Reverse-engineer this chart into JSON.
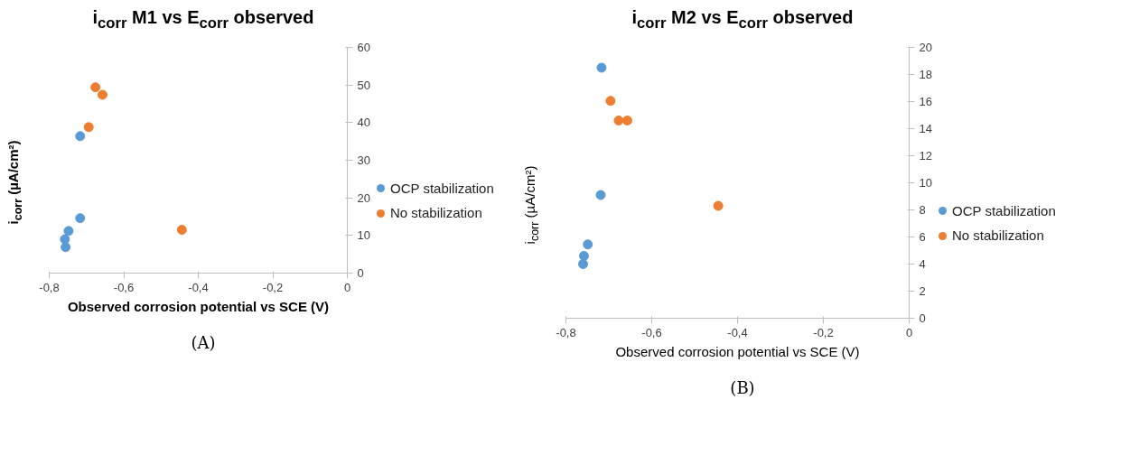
{
  "chart_data": [
    {
      "type": "scatter",
      "title": "i$_{corr}$ M1 vs E$_{corr}$ observed",
      "xlabel": "Observed corrosion potential vs SCE (V)",
      "ylabel": "i$_{corr}$ (µA/cm²)",
      "annotations": [
        "(A)"
      ],
      "xlim": [
        -0.8,
        0
      ],
      "xticks": [
        {
          "value": -0.8,
          "label": "-0,8"
        },
        {
          "value": -0.6,
          "label": "-0,6"
        },
        {
          "value": -0.4,
          "label": "-0,4"
        },
        {
          "value": -0.2,
          "label": "-0,2"
        },
        0
      ],
      "ylim": [
        0,
        60
      ],
      "yticks": [
        0,
        10,
        20,
        30,
        40,
        50,
        60
      ],
      "grid": false,
      "legend": "right",
      "marker": "circle",
      "series": [
        {
          "name": "OCP stabilization",
          "color": "#5b9bd5",
          "x": [
            -0.717,
            -0.717,
            -0.748,
            -0.758,
            -0.756
          ],
          "values": [
            36.4,
            14.6,
            11.2,
            9.0,
            6.9
          ]
        },
        {
          "name": "No stabilization",
          "color": "#ed7d31",
          "x": [
            -0.676,
            -0.657,
            -0.694,
            -0.444
          ],
          "values": [
            49.4,
            47.4,
            38.8,
            11.5
          ]
        }
      ]
    },
    {
      "type": "scatter",
      "title": "i$_{corr}$ M2 vs E$_{corr}$ observed",
      "xlabel": "Observed corrosion potential vs SCE (V)",
      "ylabel": "i$_{corr}$ (µA/cm²)",
      "annotations": [
        "(B)"
      ],
      "xlim": [
        -0.8,
        0
      ],
      "xticks": [
        {
          "value": -0.8,
          "label": "-0,8"
        },
        {
          "value": -0.6,
          "label": "-0,6"
        },
        {
          "value": -0.4,
          "label": "-0,4"
        },
        {
          "value": -0.2,
          "label": "-0,2"
        },
        0
      ],
      "ylim": [
        0,
        20
      ],
      "yticks": [
        0,
        2,
        4,
        6,
        8,
        10,
        12,
        14,
        16,
        18,
        20
      ],
      "grid": false,
      "legend": "right",
      "marker": "circle",
      "series": [
        {
          "name": "OCP stabilization",
          "color": "#5b9bd5",
          "x": [
            -0.717,
            -0.719,
            -0.749,
            -0.758,
            -0.76
          ],
          "values": [
            18.5,
            9.1,
            5.45,
            4.6,
            4.0
          ]
        },
        {
          "name": "No stabilization",
          "color": "#ed7d31",
          "x": [
            -0.696,
            -0.677,
            -0.657,
            -0.445
          ],
          "values": [
            16.05,
            14.6,
            14.6,
            8.3
          ]
        }
      ]
    }
  ]
}
